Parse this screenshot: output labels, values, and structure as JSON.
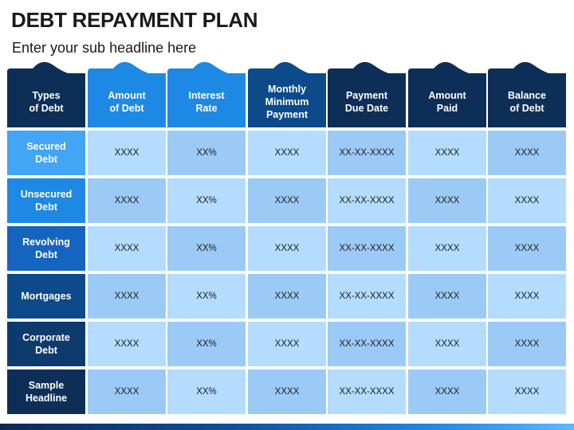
{
  "title": "DEBT REPAYMENT PLAN",
  "subtitle": "Enter your sub headline here",
  "colors": {
    "header_bg": [
      "#0d2e57",
      "#1e88e5",
      "#1e88e5",
      "#0d4a8a",
      "#0d2e57",
      "#0d2e57",
      "#0d2e57"
    ],
    "row_label_bg": [
      "#42a5f5",
      "#1e88e5",
      "#1565c0",
      "#0d4a8a",
      "#0d3b6e",
      "#0d2e57"
    ],
    "cell_light": "#b3dcff",
    "cell_dark": "#9ccaf7"
  },
  "columns": [
    "Types\nof Debt",
    "Amount\nof Debt",
    "Interest\nRate",
    "Monthly\nMinimum\nPayment",
    "Payment\nDue Date",
    "Amount\nPaid",
    "Balance\nof Debt"
  ],
  "rows": [
    {
      "label": "Secured\nDebt",
      "cells": [
        "XXXX",
        "XX%",
        "XXXX",
        "XX-XX-XXXX",
        "XXXX",
        "XXXX"
      ]
    },
    {
      "label": "Unsecured\nDebt",
      "cells": [
        "XXXX",
        "XX%",
        "XXXX",
        "XX-XX-XXXX",
        "XXXX",
        "XXXX"
      ]
    },
    {
      "label": "Revolving\nDebt",
      "cells": [
        "XXXX",
        "XX%",
        "XXXX",
        "XX-XX-XXXX",
        "XXXX",
        "XXXX"
      ]
    },
    {
      "label": "Mortgages",
      "cells": [
        "XXXX",
        "XX%",
        "XXXX",
        "XX-XX-XXXX",
        "XXXX",
        "XXXX"
      ]
    },
    {
      "label": "Corporate\nDebt",
      "cells": [
        "XXXX",
        "XX%",
        "XXXX",
        "XX-XX-XXXX",
        "XXXX",
        "XXXX"
      ]
    },
    {
      "label": "Sample\nHeadline",
      "cells": [
        "XXXX",
        "XX%",
        "XXXX",
        "XX-XX-XXXX",
        "XXXX",
        "XXXX"
      ]
    }
  ]
}
